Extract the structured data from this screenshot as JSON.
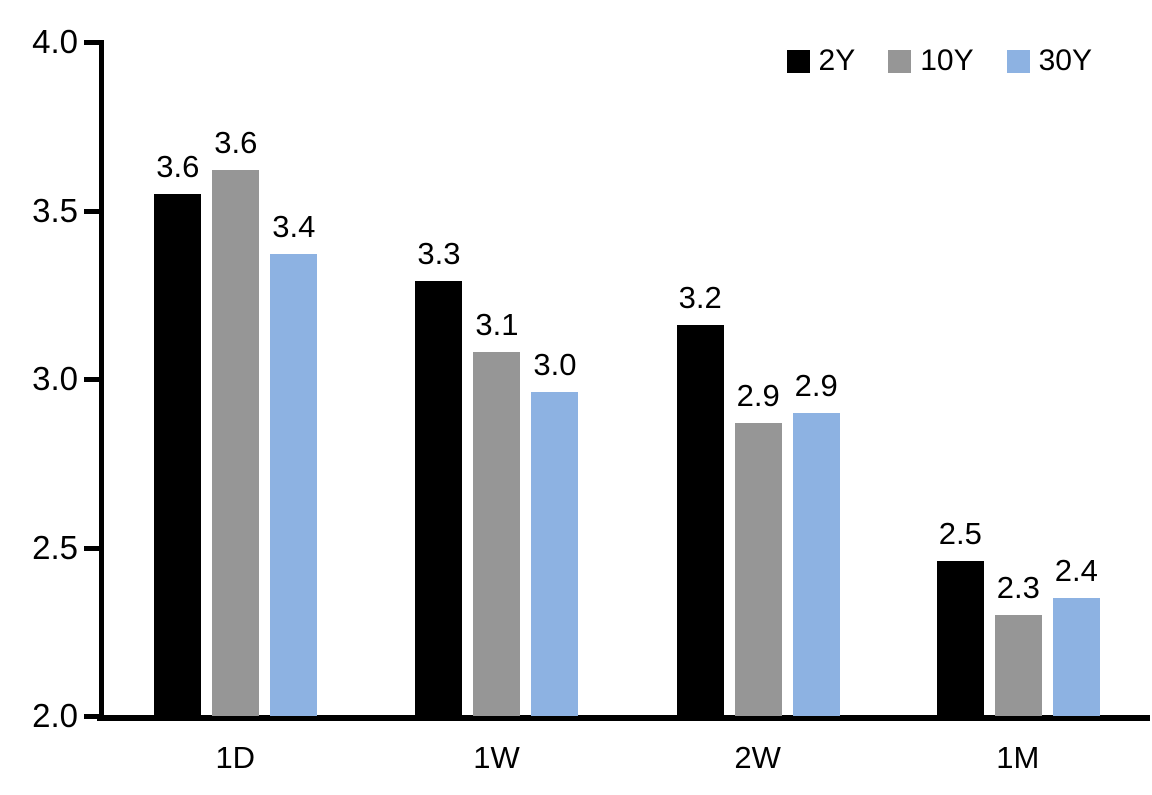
{
  "chart_data": {
    "type": "bar",
    "title": "",
    "xlabel": "",
    "ylabel": "",
    "categories": [
      "1D",
      "1W",
      "2W",
      "1M"
    ],
    "series": [
      {
        "name": "2Y",
        "color": "#000000",
        "values": [
          3.55,
          3.29,
          3.16,
          2.46
        ],
        "labels": [
          "3.6",
          "3.3",
          "3.2",
          "2.5"
        ]
      },
      {
        "name": "10Y",
        "color": "#969696",
        "values": [
          3.62,
          3.08,
          2.87,
          2.3
        ],
        "labels": [
          "3.6",
          "3.1",
          "2.9",
          "2.3"
        ]
      },
      {
        "name": "30Y",
        "color": "#8DB2E2",
        "values": [
          3.37,
          2.96,
          2.9,
          2.35
        ],
        "labels": [
          "3.4",
          "3.0",
          "2.9",
          "2.4"
        ]
      }
    ],
    "ylim": [
      2.0,
      4.0
    ],
    "yticks": [
      4.0,
      3.5,
      3.0,
      2.5,
      2.0
    ],
    "ytick_labels": [
      "4.0",
      "3.5",
      "3.0",
      "2.5",
      "2.0"
    ],
    "grid": false,
    "legend_position": "top-right",
    "axis_color": "#000000",
    "background_color": "#FFFFFF",
    "group_center_percents": [
      12.8,
      37.7,
      62.6,
      87.4
    ]
  }
}
